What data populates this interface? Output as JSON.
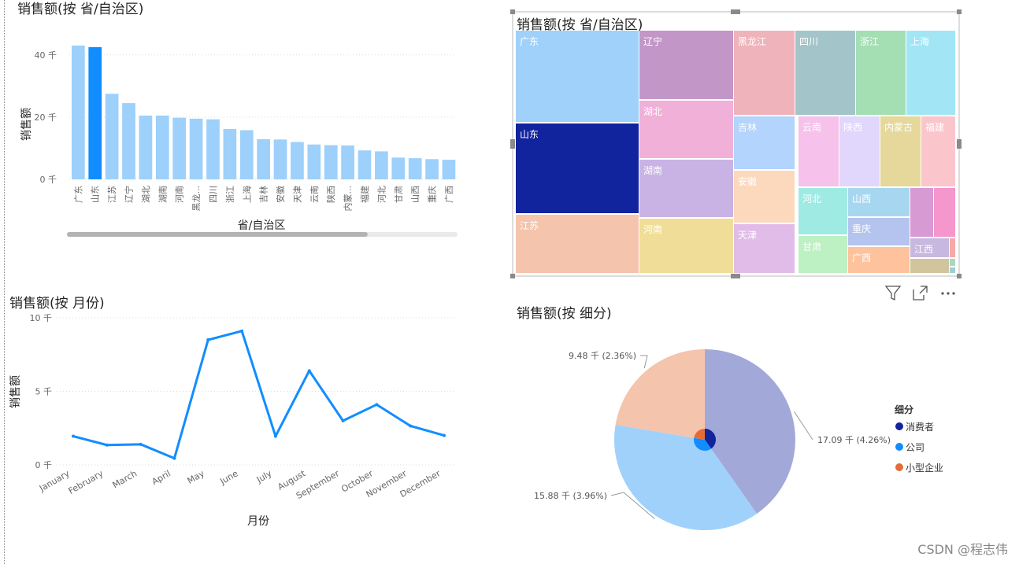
{
  "charts_titles": {
    "bar": "销售额(按 省/自治区)",
    "treemap": "销售额(按 省/自治区)",
    "line": "销售额(按 月份)",
    "pie": "销售额(按 细分)"
  },
  "icons": [
    "filter-icon",
    "expand-icon",
    "more-options-icon"
  ],
  "watermark": "CSDN @程志伟",
  "chart_data": [
    {
      "type": "bar",
      "title": "销售额(按 省/自治区)",
      "xlabel": "省/自治区",
      "ylabel": "销售额",
      "ylim": [
        0,
        45
      ],
      "yticks": [
        {
          "value": 0,
          "label": "0 千"
        },
        {
          "value": 20,
          "label": "20 千"
        },
        {
          "value": 40,
          "label": "40 千"
        }
      ],
      "categories": [
        "广东",
        "山东",
        "江苏",
        "辽宁",
        "湖北",
        "湖南",
        "河南",
        "黑龙...",
        "四川",
        "浙江",
        "上海",
        "吉林",
        "安徽",
        "天津",
        "云南",
        "陕西",
        "内蒙...",
        "福建",
        "河北",
        "甘肃",
        "山西",
        "重庆",
        "广西"
      ],
      "values": [
        43,
        42.5,
        27.5,
        24.5,
        20.5,
        20.5,
        19.8,
        19.5,
        19.3,
        16.2,
        15.8,
        12.9,
        12.8,
        12.0,
        11.2,
        11.0,
        10.9,
        9.3,
        9.0,
        7.0,
        6.8,
        6.5,
        6.3
      ],
      "highlight_index": 1,
      "colors": {
        "base": "#9dd0fb",
        "highlight": "#118dff"
      },
      "grid": true,
      "scrollbar_fraction": 0.77
    },
    {
      "type": "treemap",
      "title": "销售额(按 省/自治区)",
      "items": [
        {
          "label": "广东",
          "color": "#a0d1fb"
        },
        {
          "label": "山东",
          "color": "#12239e"
        },
        {
          "label": "江苏",
          "color": "#f4c4ad"
        },
        {
          "label": "辽宁",
          "color": "#c396c8"
        },
        {
          "label": "湖北",
          "color": "#f0b0d8"
        },
        {
          "label": "湖南",
          "color": "#c9b3e4"
        },
        {
          "label": "河南",
          "color": "#f0de98"
        },
        {
          "label": "黑龙江",
          "color": "#efb3bc"
        },
        {
          "label": "吉林",
          "color": "#b3d4fc"
        },
        {
          "label": "安徽",
          "color": "#fcd9bd"
        },
        {
          "label": "天津",
          "color": "#e2bce9"
        },
        {
          "label": "四川",
          "color": "#a3c4c8"
        },
        {
          "label": "浙江",
          "color": "#a3dfb2"
        },
        {
          "label": "上海",
          "color": "#a2e6f6"
        },
        {
          "label": "云南",
          "color": "#f6c1ea"
        },
        {
          "label": "陕西",
          "color": "#e1d6fc"
        },
        {
          "label": "内蒙古",
          "color": "#e5d89a"
        },
        {
          "label": "福建",
          "color": "#fbc6cb"
        },
        {
          "label": "河北",
          "color": "#9feae3"
        },
        {
          "label": "甘肃",
          "color": "#bdf0c2"
        },
        {
          "label": "山西",
          "color": "#a7d7f0"
        },
        {
          "label": "重庆",
          "color": "#b4c4ee"
        },
        {
          "label": "广西",
          "color": "#fec39c"
        },
        {
          "label": "江西",
          "color": "#c7b8df"
        },
        {
          "label": "",
          "color": "#d89ad2"
        },
        {
          "label": "",
          "color": "#f596cd"
        },
        {
          "label": "",
          "color": "#f5aaa8"
        },
        {
          "label": "",
          "color": "#d2c49c"
        },
        {
          "label": "",
          "color": "#a8d8c4"
        },
        {
          "label": "",
          "color": "#9ecfd4"
        }
      ]
    },
    {
      "type": "line",
      "title": "销售额(按 月份)",
      "xlabel": "月份",
      "ylabel": "销售额",
      "ylim": [
        0,
        10
      ],
      "yticks": [
        {
          "value": 0,
          "label": "0 千"
        },
        {
          "value": 5,
          "label": "5 千"
        },
        {
          "value": 10,
          "label": "10 千"
        }
      ],
      "categories": [
        "January",
        "February",
        "March",
        "April",
        "May",
        "June",
        "July",
        "August",
        "September",
        "October",
        "November",
        "December"
      ],
      "values": [
        1.95,
        1.35,
        1.4,
        0.45,
        8.5,
        9.1,
        1.95,
        6.4,
        3.0,
        4.1,
        2.65,
        2.0
      ],
      "color": "#118dff",
      "grid": true
    },
    {
      "type": "pie",
      "title": "销售额(按 细分)",
      "legend_title": "细分",
      "legend_position": "right",
      "series": [
        {
          "name": "消费者",
          "value": 17.09,
          "label": "17.09 千 (4.26%)",
          "outer_color": "#a2a9d8",
          "inner_color": "#12239e"
        },
        {
          "name": "公司",
          "value": 15.88,
          "label": "15.88 千 (3.96%)",
          "outer_color": "#a0d1fb",
          "inner_color": "#118dff"
        },
        {
          "name": "小型企业",
          "value": 9.48,
          "label": "9.48 千 (2.36%)",
          "outer_color": "#f4c4ad",
          "inner_color": "#e66c37"
        }
      ]
    }
  ]
}
